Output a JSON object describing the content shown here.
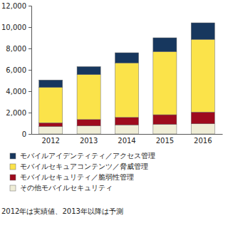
{
  "chart_data": {
    "type": "bar",
    "stacked": true,
    "categories": [
      "2012",
      "2013",
      "2014",
      "2015",
      "2016"
    ],
    "series": [
      {
        "name": "その他モバイルセキュリティ",
        "color": "#efedd6",
        "values": [
          700,
          750,
          850,
          900,
          950
        ]
      },
      {
        "name": "モバイルセキュリティ／脆弱性管理",
        "color": "#9e0b1e",
        "values": [
          350,
          600,
          700,
          900,
          1100
        ]
      },
      {
        "name": "モバイルセキュアコンテンツ／脅威管理",
        "color": "#fbe34a",
        "values": [
          3300,
          4200,
          5100,
          5900,
          6800
        ]
      },
      {
        "name": "モバイルアイデンティティ／アクセス管理",
        "color": "#17375e",
        "values": [
          700,
          750,
          950,
          1300,
          1550
        ]
      }
    ],
    "ylim": [
      0,
      12000
    ],
    "yticks": [
      0,
      {
        "value": 2000,
        "label": "2,000"
      },
      {
        "value": 4000,
        "label": "4,000"
      },
      {
        "value": 6000,
        "label": "6,000"
      },
      {
        "value": 8000,
        "label": "8,000"
      },
      {
        "value": 10000,
        "label": "10,000"
      },
      {
        "value": 12000,
        "label": "12,000"
      }
    ],
    "grid": false,
    "annotations": [
      "2012年は実績値、2013年以降は予測"
    ]
  }
}
